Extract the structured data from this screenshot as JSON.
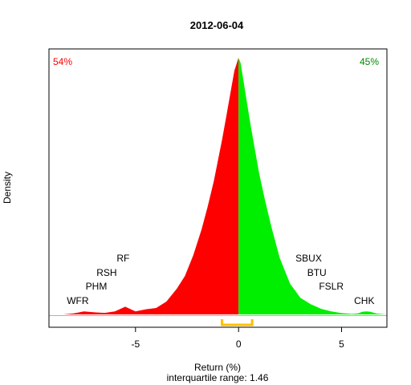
{
  "chart_data": {
    "type": "area",
    "title": "2012-06-04",
    "xlabel": "Return (%)",
    "ylabel": "Density",
    "subtitle": "interquartile range: 1.46",
    "xlim": [
      -9.2,
      7.2
    ],
    "ylim": [
      0,
      1
    ],
    "xticks": [
      -5,
      0,
      5
    ],
    "grid": false,
    "split_x": 0,
    "left_share": "54%",
    "right_share": "45%",
    "colors": {
      "negative": "#ff0000",
      "positive": "#00ee00",
      "iqr_bracket": "#ffbf00",
      "baseline": "#b0b0b0"
    },
    "iqr": [
      -0.8,
      0.66
    ],
    "density": {
      "x": [
        -9.2,
        -8.5,
        -8.0,
        -7.5,
        -7.0,
        -6.5,
        -6.0,
        -5.5,
        -5.0,
        -4.5,
        -4.0,
        -3.5,
        -3.0,
        -2.6,
        -2.2,
        -1.8,
        -1.5,
        -1.2,
        -1.0,
        -0.8,
        -0.6,
        -0.4,
        -0.2,
        0.0,
        0.1,
        0.2,
        0.4,
        0.6,
        0.8,
        1.0,
        1.3,
        1.6,
        2.0,
        2.5,
        3.0,
        3.5,
        4.0,
        4.5,
        5.0,
        5.5,
        5.8,
        6.0,
        6.2,
        6.4,
        6.7,
        7.2
      ],
      "y": [
        0.0,
        0.0,
        0.004,
        0.012,
        0.008,
        0.006,
        0.012,
        0.03,
        0.012,
        0.02,
        0.025,
        0.05,
        0.1,
        0.15,
        0.23,
        0.33,
        0.42,
        0.52,
        0.6,
        0.68,
        0.77,
        0.86,
        0.95,
        1.0,
        0.98,
        0.93,
        0.83,
        0.73,
        0.64,
        0.55,
        0.44,
        0.34,
        0.22,
        0.12,
        0.065,
        0.04,
        0.022,
        0.012,
        0.005,
        0.002,
        0.004,
        0.01,
        0.012,
        0.01,
        0.003,
        0.0
      ]
    },
    "annotations": [
      {
        "text": "RF",
        "x": -5.6
      },
      {
        "text": "RSH",
        "x": -6.4
      },
      {
        "text": "PHM",
        "x": -6.9
      },
      {
        "text": "WFR",
        "x": -7.8
      },
      {
        "text": "SBUX",
        "x": 3.4
      },
      {
        "text": "BTU",
        "x": 3.8
      },
      {
        "text": "FSLR",
        "x": 4.5
      },
      {
        "text": "CHK",
        "x": 6.1
      }
    ]
  }
}
